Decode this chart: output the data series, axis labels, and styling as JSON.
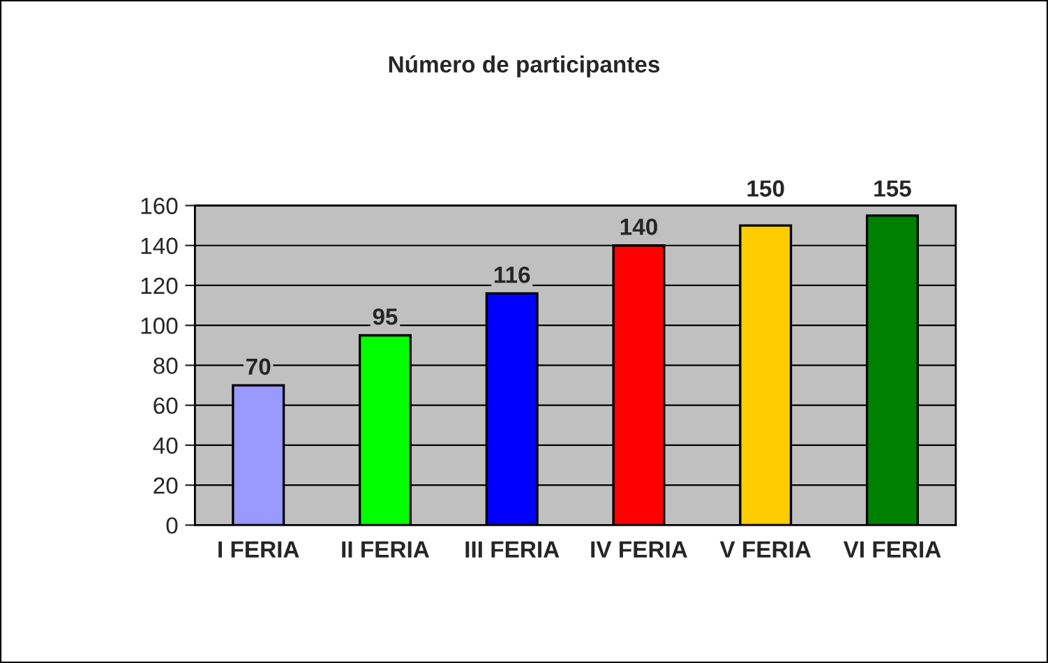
{
  "chart_data": {
    "type": "bar",
    "title": "Número de participantes",
    "categories": [
      "I FERIA",
      "II FERIA",
      "III FERIA",
      "IV FERIA",
      "V FERIA",
      "VI FERIA"
    ],
    "values": [
      70,
      95,
      116,
      140,
      150,
      155
    ],
    "colors": [
      "#9999ff",
      "#00ff00",
      "#0000ff",
      "#ff0000",
      "#ffcc00",
      "#008000"
    ],
    "ylim": [
      0,
      160
    ],
    "yticks": [
      0,
      20,
      40,
      60,
      80,
      100,
      120,
      140,
      160
    ],
    "grid": "y",
    "data_labels": true,
    "legend": false
  }
}
